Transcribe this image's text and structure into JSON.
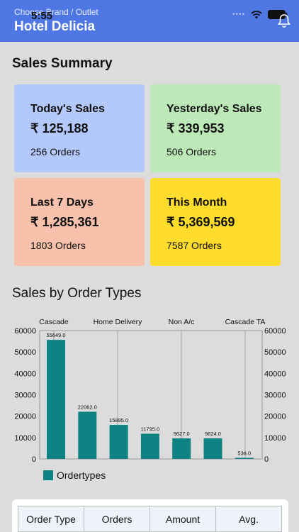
{
  "status": {
    "time": "5:55"
  },
  "header": {
    "subtitle": "Choose Brand / Outlet",
    "title": "Hotel Delicia"
  },
  "sections": {
    "summary_title": "Sales Summary",
    "chart_title": "Sales by Order Types"
  },
  "cards": [
    {
      "label": "Today's Sales",
      "amount": "₹ 125,188",
      "orders": "256 Orders",
      "color": "#b3c8fb"
    },
    {
      "label": "Yesterday's Sales",
      "amount": "₹ 339,953",
      "orders": "506 Orders",
      "color": "#bde9b9"
    },
    {
      "label": "Last 7 Days",
      "amount": "₹ 1,285,361",
      "orders": "1803 Orders",
      "color": "#f7c1ab"
    },
    {
      "label": "This Month",
      "amount": "₹ 5,369,569",
      "orders": "7587 Orders",
      "color": "#fddc2c"
    }
  ],
  "chart_data": {
    "type": "bar",
    "values": [
      55649.0,
      22062.0,
      15895.0,
      11795.0,
      9627.0,
      9624.0,
      536.0
    ],
    "value_labels": [
      "55649.0",
      "22062.0",
      "15895.0",
      "11795.0",
      "9627.0",
      "9624.0",
      "536.0"
    ],
    "top_labels": [
      "Cascade",
      "Home Delivery",
      "Non A/c",
      "Cascade TA"
    ],
    "yticks": [
      "60000",
      "50000",
      "40000",
      "30000",
      "20000",
      "10000",
      "0"
    ],
    "ylim": [
      0,
      60000
    ],
    "legend": [
      "Ordertypes"
    ],
    "bar_color": "#0f8384",
    "legend_position": "bottom-left",
    "grid": true
  },
  "table": {
    "headers": [
      "Order Type",
      "Orders",
      "Amount",
      "Avg."
    ]
  }
}
